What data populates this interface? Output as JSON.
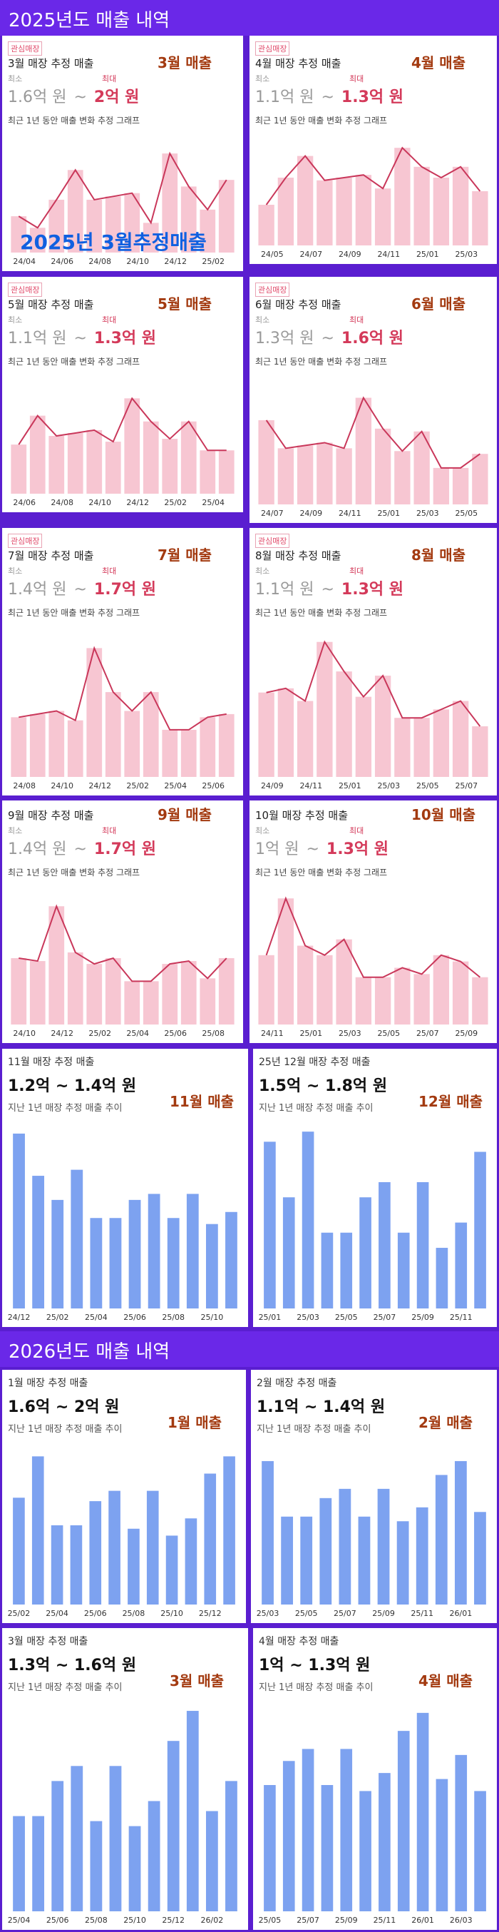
{
  "header_2025": "2025년도 매출 내역",
  "header_2026": "2026년도 매출 내역",
  "overlay": "2025년 3월추정매출",
  "colors": {
    "bar_pink": "#f7c6d2",
    "line_pink": "#c9375a",
    "bar_blue": "#7da2f0",
    "accent_red": "#d43a5a"
  },
  "panels": [
    {
      "style": "pink",
      "tag": "관심매장",
      "title": "3월 매장 추정 매출",
      "month_label": "3월 매출",
      "min_label": "최소",
      "max_label": "최대",
      "min": "1.6억 원",
      "sep": "~",
      "max": "2억 원",
      "subtitle": "최근 1년 동안 매출 변화 추정 그래프",
      "chart_data": {
        "type": "bar",
        "title": "",
        "x_ticks": [
          "24/04",
          "24/06",
          "24/08",
          "24/10",
          "24/12",
          "25/02"
        ],
        "categories": [
          "24/04",
          "24/05",
          "24/06",
          "24/07",
          "24/08",
          "24/09",
          "24/10",
          "24/11",
          "24/12",
          "25/01",
          "25/02",
          "25/03"
        ],
        "values": [
          1.62,
          1.55,
          1.72,
          1.9,
          1.72,
          1.74,
          1.76,
          1.58,
          2.0,
          1.8,
          1.66,
          1.84
        ],
        "ylim": [
          1.4,
          2.1
        ]
      }
    },
    {
      "style": "pink",
      "tag": "관심매장",
      "title": "4월 매장 추정 매출",
      "month_label": "4월 매출",
      "min_label": "최소",
      "max_label": "최대",
      "min": "1.1억 원",
      "sep": "~",
      "max": "1.3억 원",
      "subtitle": "최근 1년 동안 매출 변화 추정 그래프",
      "chart_data": {
        "type": "bar",
        "title": "",
        "x_ticks": [
          "24/05",
          "24/07",
          "24/09",
          "24/11",
          "25/01",
          "25/03"
        ],
        "categories": [
          "24/05",
          "24/06",
          "24/07",
          "24/08",
          "24/09",
          "24/10",
          "24/11",
          "24/12",
          "25/01",
          "25/02",
          "25/03",
          "25/04"
        ],
        "values": [
          1.1,
          1.2,
          1.28,
          1.19,
          1.2,
          1.21,
          1.16,
          1.31,
          1.24,
          1.2,
          1.24,
          1.15
        ],
        "ylim": [
          0.95,
          1.35
        ]
      }
    },
    {
      "style": "pink",
      "tag": "관심매장",
      "title": "5월 매장 추정 매출",
      "month_label": "5월 매출",
      "min_label": "최소",
      "max_label": "최대",
      "min": "1.1억 원",
      "sep": "~",
      "max": "1.3억 원",
      "subtitle": "최근 1년 동안 매출 변화 추정 그래프",
      "chart_data": {
        "type": "bar",
        "title": "",
        "x_ticks": [
          "24/06",
          "24/08",
          "24/10",
          "24/12",
          "25/02",
          "25/04"
        ],
        "categories": [
          "24/06",
          "24/07",
          "24/08",
          "24/09",
          "24/10",
          "24/11",
          "24/12",
          "25/01",
          "25/02",
          "25/03",
          "25/04",
          "25/05"
        ],
        "values": [
          1.12,
          1.22,
          1.15,
          1.16,
          1.17,
          1.13,
          1.28,
          1.2,
          1.14,
          1.2,
          1.1,
          1.1
        ],
        "ylim": [
          0.95,
          1.35
        ]
      }
    },
    {
      "style": "pink",
      "tag": "관심매장",
      "title": "6월 매장 추정 매출",
      "month_label": "6월 매출",
      "min_label": "최소",
      "max_label": "최대",
      "min": "1.3억 원",
      "sep": "~",
      "max": "1.6억 원",
      "subtitle": "최근 1년 동안 매출 변화 추정 그래프",
      "chart_data": {
        "type": "bar",
        "title": "",
        "x_ticks": [
          "24/07",
          "24/09",
          "24/11",
          "25/01",
          "25/03",
          "25/05"
        ],
        "categories": [
          "24/07",
          "24/08",
          "24/09",
          "24/10",
          "24/11",
          "24/12",
          "25/01",
          "25/02",
          "25/03",
          "25/04",
          "25/05",
          "25/06"
        ],
        "values": [
          1.5,
          1.4,
          1.41,
          1.42,
          1.4,
          1.58,
          1.47,
          1.39,
          1.46,
          1.33,
          1.33,
          1.38
        ],
        "ylim": [
          1.2,
          1.65
        ]
      }
    },
    {
      "style": "pink",
      "tag": "관심매장",
      "title": "7월 매장 추정 매출",
      "month_label": "7월 매출",
      "min_label": "최소",
      "max_label": "최대",
      "min": "1.4억 원",
      "sep": "~",
      "max": "1.7억 원",
      "subtitle": "최근 1년 동안 매출 변화 추정 그래프",
      "chart_data": {
        "type": "bar",
        "title": "",
        "x_ticks": [
          "24/08",
          "24/10",
          "24/12",
          "25/02",
          "25/04",
          "25/06"
        ],
        "categories": [
          "24/08",
          "24/09",
          "24/10",
          "24/11",
          "24/12",
          "25/01",
          "25/02",
          "25/03",
          "25/04",
          "25/05",
          "25/06",
          "25/07"
        ],
        "values": [
          1.44,
          1.45,
          1.46,
          1.43,
          1.66,
          1.52,
          1.46,
          1.52,
          1.4,
          1.4,
          1.44,
          1.45
        ],
        "ylim": [
          1.25,
          1.72
        ]
      }
    },
    {
      "style": "pink",
      "tag": "관심매장",
      "title": "8월 매장 추정 매출",
      "month_label": "8월 매출",
      "min_label": "최소",
      "max_label": "최대",
      "min": "1.1억 원",
      "sep": "~",
      "max": "1.3억 원",
      "subtitle": "최근 1년 동안 매출 변화 추정 그래프",
      "chart_data": {
        "type": "bar",
        "title": "",
        "x_ticks": [
          "24/09",
          "24/11",
          "25/01",
          "25/03",
          "25/05",
          "25/07"
        ],
        "categories": [
          "24/09",
          "24/10",
          "24/11",
          "24/12",
          "25/01",
          "25/02",
          "25/03",
          "25/04",
          "25/05",
          "25/06",
          "25/07",
          "25/08"
        ],
        "values": [
          1.18,
          1.19,
          1.16,
          1.3,
          1.23,
          1.17,
          1.22,
          1.12,
          1.12,
          1.14,
          1.16,
          1.1
        ],
        "ylim": [
          0.98,
          1.33
        ]
      }
    },
    {
      "style": "pink",
      "tag": "",
      "title": "9월 매장 추정 매출",
      "month_label": "9월 매출",
      "min_label": "최소",
      "max_label": "최대",
      "min": "1.4억 원",
      "sep": "~",
      "max": "1.7억 원",
      "subtitle": "최근 1년 동안 매출 변화 추정 그래프",
      "chart_data": {
        "type": "bar",
        "title": "",
        "x_ticks": [
          "24/10",
          "24/12",
          "25/02",
          "25/04",
          "25/06",
          "25/08"
        ],
        "categories": [
          "24/10",
          "24/11",
          "24/12",
          "25/01",
          "25/02",
          "25/03",
          "25/04",
          "25/05",
          "25/06",
          "25/07",
          "25/08",
          "25/09"
        ],
        "values": [
          1.48,
          1.47,
          1.66,
          1.5,
          1.46,
          1.48,
          1.4,
          1.4,
          1.46,
          1.47,
          1.41,
          1.48
        ],
        "ylim": [
          1.25,
          1.72
        ]
      }
    },
    {
      "style": "pink",
      "tag": "",
      "title": "10월 매장 추정 매출",
      "month_label": "10월 매출",
      "min_label": "최소",
      "max_label": "최대",
      "min": "1억 원",
      "sep": "~",
      "max": "1.3억 원",
      "subtitle": "최근 1년 동안 매출 변화 추정 그래프",
      "chart_data": {
        "type": "bar",
        "title": "",
        "x_ticks": [
          "24/11",
          "25/01",
          "25/03",
          "25/05",
          "25/07",
          "25/09"
        ],
        "categories": [
          "24/11",
          "24/12",
          "25/01",
          "25/02",
          "25/03",
          "25/04",
          "25/05",
          "25/06",
          "25/07",
          "25/08",
          "25/09",
          "25/10"
        ],
        "values": [
          1.12,
          1.3,
          1.15,
          1.12,
          1.17,
          1.05,
          1.05,
          1.08,
          1.06,
          1.12,
          1.1,
          1.05
        ],
        "ylim": [
          0.9,
          1.33
        ]
      }
    },
    {
      "style": "blue",
      "title": "11월 매장 추정 매출",
      "month_label": "11월 매출",
      "range": "1.2억 ~ 1.4억 원",
      "subtitle": "지난 1년 매장 추정 매출 추이",
      "chart_data": {
        "type": "bar",
        "title": "",
        "x_ticks": [
          "24/12",
          "25/02",
          "25/04",
          "25/06",
          "25/08",
          "25/10"
        ],
        "categories": [
          "24/12",
          "25/01",
          "25/02",
          "25/03",
          "25/04",
          "25/05",
          "25/06",
          "25/07",
          "25/08",
          "25/09",
          "25/10",
          "25/11"
        ],
        "values": [
          1.44,
          1.37,
          1.33,
          1.38,
          1.3,
          1.3,
          1.33,
          1.34,
          1.3,
          1.34,
          1.29,
          1.31
        ],
        "ylim": [
          1.15,
          1.46
        ]
      }
    },
    {
      "style": "blue",
      "title": "25년 12월 매장 추정 매출",
      "month_label": "12월 매출",
      "range": "1.5억 ~ 1.8억 원",
      "subtitle": "지난 1년 매장 추정 매출 추이",
      "chart_data": {
        "type": "bar",
        "title": "",
        "x_ticks": [
          "25/01",
          "25/03",
          "25/05",
          "25/07",
          "25/09",
          "25/11"
        ],
        "categories": [
          "25/01",
          "25/02",
          "25/03",
          "25/04",
          "25/05",
          "25/06",
          "25/07",
          "25/08",
          "25/09",
          "25/10",
          "25/11",
          "25/12"
        ],
        "values": [
          1.78,
          1.67,
          1.8,
          1.6,
          1.6,
          1.67,
          1.7,
          1.6,
          1.7,
          1.57,
          1.62,
          1.76
        ],
        "ylim": [
          1.45,
          1.82
        ]
      }
    },
    {
      "style": "blue",
      "title": "1월 매장 추정 매출",
      "month_label": "1월 매출",
      "range": "1.6억 ~ 2억 원",
      "subtitle": "지난 1년 매장 추정 매출 추이",
      "chart_data": {
        "type": "bar",
        "title": "",
        "x_ticks": [
          "25/02",
          "25/04",
          "25/06",
          "25/08",
          "25/10",
          "25/12"
        ],
        "categories": [
          "25/02",
          "25/03",
          "25/04",
          "25/05",
          "25/06",
          "25/07",
          "25/08",
          "25/09",
          "25/10",
          "25/11",
          "25/12",
          "26/01"
        ],
        "values": [
          1.86,
          1.98,
          1.78,
          1.78,
          1.85,
          1.88,
          1.77,
          1.88,
          1.75,
          1.8,
          1.93,
          1.98
        ],
        "ylim": [
          1.55,
          2.02
        ]
      }
    },
    {
      "style": "blue",
      "title": "2월 매장 추정 매출",
      "month_label": "2월 매출",
      "range": "1.1억 ~ 1.4억 원",
      "subtitle": "지난 1년 매장 추정 매출 추이",
      "chart_data": {
        "type": "bar",
        "title": "",
        "x_ticks": [
          "25/03",
          "25/05",
          "25/07",
          "25/09",
          "25/11",
          "26/01"
        ],
        "categories": [
          "25/03",
          "25/04",
          "25/05",
          "25/06",
          "25/07",
          "25/08",
          "25/09",
          "25/10",
          "25/11",
          "25/12",
          "26/01",
          "26/02"
        ],
        "values": [
          1.36,
          1.24,
          1.24,
          1.28,
          1.3,
          1.24,
          1.3,
          1.23,
          1.26,
          1.33,
          1.36,
          1.25
        ],
        "ylim": [
          1.05,
          1.4
        ]
      }
    },
    {
      "style": "blue",
      "title": "3월 매장 추정 매출",
      "month_label": "3월 매출",
      "range": "1.3억 ~ 1.6억 원",
      "subtitle": "지난 1년 매장 추정 매출 추이",
      "chart_data": {
        "type": "bar",
        "title": "",
        "x_ticks": [
          "25/04",
          "25/06",
          "25/08",
          "25/10",
          "25/12",
          "26/02"
        ],
        "categories": [
          "25/04",
          "25/05",
          "25/06",
          "25/07",
          "25/08",
          "25/09",
          "25/10",
          "25/11",
          "25/12",
          "26/01",
          "26/02",
          "26/03"
        ],
        "values": [
          1.39,
          1.39,
          1.46,
          1.49,
          1.38,
          1.49,
          1.37,
          1.42,
          1.54,
          1.6,
          1.4,
          1.46
        ],
        "ylim": [
          1.2,
          1.62
        ]
      }
    },
    {
      "style": "blue",
      "title": "4월 매장 추정 매출",
      "month_label": "4월 매출",
      "range": "1억 ~ 1.3억 원",
      "subtitle": "지난 1년 매장 추정 매출 추이",
      "chart_data": {
        "type": "bar",
        "title": "",
        "x_ticks": [
          "25/05",
          "25/07",
          "25/09",
          "25/11",
          "26/01",
          "26/03"
        ],
        "categories": [
          "25/05",
          "25/06",
          "25/07",
          "25/08",
          "25/09",
          "25/10",
          "25/11",
          "25/12",
          "26/01",
          "26/02",
          "26/03",
          "26/04"
        ],
        "values": [
          1.16,
          1.2,
          1.22,
          1.16,
          1.22,
          1.15,
          1.18,
          1.25,
          1.28,
          1.17,
          1.21,
          1.15
        ],
        "ylim": [
          0.95,
          1.3
        ]
      }
    }
  ]
}
